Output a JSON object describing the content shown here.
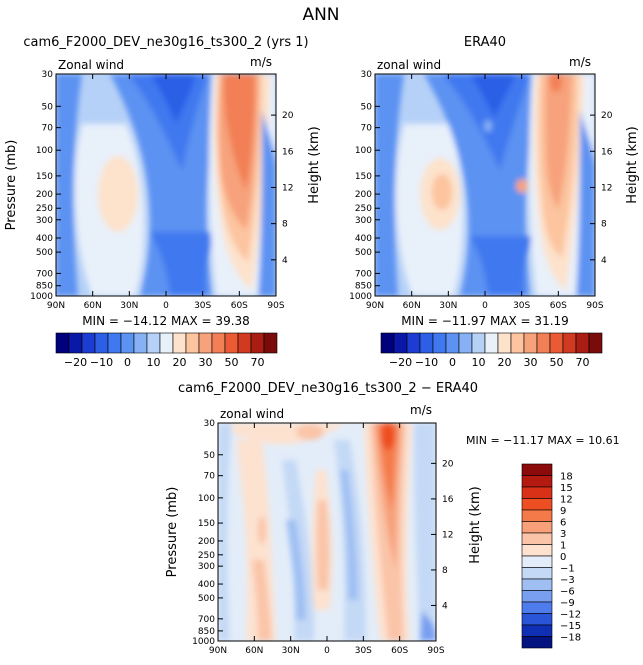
{
  "figure_title": "ANN",
  "chart_data": [
    {
      "type": "heatmap",
      "panel": "model",
      "title": "cam6_F2000_DEV_ne30g16_ts300_2 (yrs 1)",
      "variable": "Zonal wind",
      "units": "m/s",
      "ylabel": "Pressure (mb)",
      "ylabel_right": "Height (km)",
      "x_ticks": [
        "90N",
        "60N",
        "30N",
        "0",
        "30S",
        "60S",
        "90S"
      ],
      "y_ticks": [
        "30",
        "50",
        "70",
        "100",
        "150",
        "200",
        "250",
        "300",
        "400",
        "500",
        "700",
        "850",
        "1000"
      ],
      "height_ticks": [
        "4",
        "8",
        "12",
        "16",
        "20"
      ],
      "stats_text": "MIN = −14.12   MAX =  39.38",
      "min": -14.12,
      "max": 39.38,
      "colorbar": {
        "tick_labels": [
          "−20",
          "−10",
          "0",
          "10",
          "20",
          "30",
          "50",
          "70"
        ],
        "levels": [
          -25,
          -20,
          -15,
          -10,
          -5,
          0,
          5,
          10,
          15,
          20,
          25,
          30,
          40,
          50,
          60,
          70
        ],
        "colors": [
          "#00007c",
          "#0a18a8",
          "#1c3cd2",
          "#2c5ee6",
          "#3f78ef",
          "#5c92f2",
          "#86b2f5",
          "#b6d1f7",
          "#e8f0fa",
          "#fde2cc",
          "#fcc49f",
          "#f7a27b",
          "#f27f55",
          "#e95a35",
          "#cf3a20",
          "#a91d12",
          "#7a0b0b"
        ]
      }
    },
    {
      "type": "heatmap",
      "panel": "observations",
      "title": "ERA40",
      "variable": "zonal wind",
      "units": "m/s",
      "ylabel_right": "Height (km)",
      "x_ticks": [
        "90N",
        "60N",
        "30N",
        "0",
        "30S",
        "60S",
        "90S"
      ],
      "y_ticks": [
        "30",
        "50",
        "70",
        "100",
        "150",
        "200",
        "250",
        "300",
        "400",
        "500",
        "700",
        "850",
        "1000"
      ],
      "height_ticks": [
        "4",
        "8",
        "12",
        "16",
        "20"
      ],
      "stats_text": "MIN = −11.97   MAX =  31.19",
      "min": -11.97,
      "max": 31.19,
      "colorbar": {
        "tick_labels": [
          "−20",
          "−10",
          "0",
          "10",
          "20",
          "30",
          "50",
          "70"
        ],
        "levels": [
          -25,
          -20,
          -15,
          -10,
          -5,
          0,
          5,
          10,
          15,
          20,
          25,
          30,
          40,
          50,
          60,
          70
        ],
        "colors": [
          "#00007c",
          "#0a18a8",
          "#1c3cd2",
          "#2c5ee6",
          "#3f78ef",
          "#5c92f2",
          "#86b2f5",
          "#b6d1f7",
          "#e8f0fa",
          "#fde2cc",
          "#fcc49f",
          "#f7a27b",
          "#f27f55",
          "#e95a35",
          "#cf3a20",
          "#a91d12",
          "#7a0b0b"
        ]
      }
    },
    {
      "type": "heatmap",
      "panel": "difference",
      "title": "cam6_F2000_DEV_ne30g16_ts300_2 − ERA40",
      "variable": "zonal wind",
      "units": "m/s",
      "ylabel": "Pressure (mb)",
      "ylabel_right": "Height (km)",
      "x_ticks": [
        "90N",
        "60N",
        "30N",
        "0",
        "30S",
        "60S",
        "90S"
      ],
      "y_ticks": [
        "30",
        "50",
        "70",
        "100",
        "150",
        "200",
        "250",
        "300",
        "400",
        "500",
        "700",
        "850",
        "1000"
      ],
      "height_ticks": [
        "4",
        "8",
        "12",
        "16",
        "20"
      ],
      "stats_text": "MIN = −11.17   MAX =  10.61",
      "min": -11.17,
      "max": 10.61,
      "colorbar": {
        "tick_labels": [
          "18",
          "15",
          "12",
          "9",
          "6",
          "3",
          "1",
          "0",
          "−1",
          "−3",
          "−6",
          "−9",
          "−12",
          "−15",
          "−18"
        ],
        "colors_top_to_bottom": [
          "#8c0a0a",
          "#b51a10",
          "#d93118",
          "#ee4f22",
          "#f47a49",
          "#f7a07a",
          "#fac4a8",
          "#fde2d0",
          "#e3edf9",
          "#c4d9f6",
          "#9fbff3",
          "#789ff0",
          "#4e7cec",
          "#2a55d9",
          "#0f30b5",
          "#03137f"
        ]
      }
    }
  ]
}
